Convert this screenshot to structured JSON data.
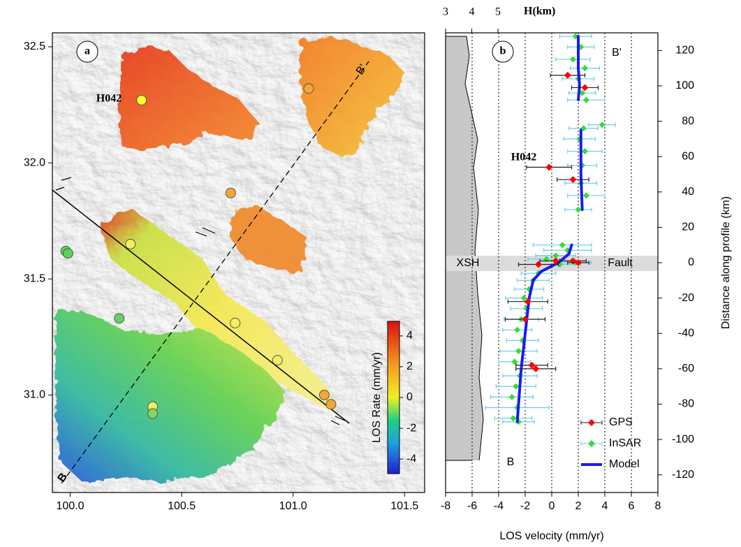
{
  "chart_data": [
    {
      "type": "map",
      "panel_label": "a",
      "xlim": [
        99.92,
        101.59
      ],
      "ylim": [
        30.58,
        32.56
      ],
      "xticks": [
        {
          "value": 100,
          "label": "100.0"
        },
        100.5,
        {
          "value": 101,
          "label": "101.0"
        },
        101.5
      ],
      "yticks": [
        {
          "value": 31,
          "label": "31.0"
        },
        31.5,
        {
          "value": 32,
          "label": "32.0"
        },
        32.5
      ],
      "stations": {
        "x": [
          100.32,
          101.07,
          100.72,
          99.98,
          99.99,
          100.27,
          100.22,
          100.74,
          100.93,
          101.14,
          101.17,
          100.37,
          100.37
        ],
        "y": [
          32.27,
          32.32,
          31.87,
          31.62,
          31.61,
          31.65,
          31.33,
          31.31,
          31.15,
          31.0,
          30.96,
          30.95,
          30.92
        ],
        "colors": [
          "#ffff33",
          "#f4a637",
          "#f4a637",
          "#55d655",
          "#55d655",
          "#f0f060",
          "#66d066",
          "#f0f060",
          "#f0f060",
          "#f4a637",
          "#f4a637",
          "#e8f060",
          "#80d860"
        ]
      },
      "annotations": [
        "H042",
        "B",
        "B'"
      ],
      "colorbar": {
        "label": "LOS Rate (mm/yr)",
        "lim": [
          -4.95,
          4.95
        ],
        "ticks": [
          4,
          2,
          0,
          -2,
          -4
        ]
      }
    },
    {
      "type": "scatter",
      "panel_label": "b",
      "x_label": "LOS velocity (mm/yr)",
      "y_label": "Distance along profile (km)",
      "x2_label": "H(km)",
      "xlim": [
        -8,
        8
      ],
      "xticks": [
        -8,
        -6,
        -4,
        -2,
        0,
        2,
        4,
        6,
        8
      ],
      "ylim": [
        -130,
        130
      ],
      "yticks": [
        -120,
        -100,
        -80,
        -60,
        -40,
        -20,
        0,
        20,
        40,
        60,
        80,
        100,
        120
      ],
      "x2lim": [
        3,
        11.1
      ],
      "x2ticks": [
        3,
        4,
        5
      ],
      "grid": true,
      "legend": "lower right",
      "annotations": [
        "B'",
        "B",
        "H042",
        "XSH",
        "Fault"
      ],
      "series": [
        {
          "name": "GPS",
          "color": "#ff0000",
          "error_color": "#222222",
          "x": [
            1.2,
            2.5,
            -0.2,
            1.6,
            -1.0,
            0.3,
            1.6,
            2.0,
            -1.8,
            -2.0,
            -1.5,
            -1.2
          ],
          "values": [
            106,
            99,
            54,
            47,
            -1,
            1,
            1,
            0,
            -22,
            -32,
            -58,
            -60
          ],
          "errors": [
            1.3,
            1.0,
            1.7,
            1.2,
            1.5,
            1.2,
            1.0,
            0.8,
            1.5,
            1.5,
            1.2,
            1.5
          ]
        },
        {
          "name": "InSAR",
          "color": "#33dd33",
          "error_color": "#66ccee",
          "x": [
            1.8,
            2.2,
            1.6,
            2.5,
            2.0,
            2.3,
            2.6,
            2.4,
            3.8,
            2.1,
            2.5,
            2.3,
            2.2,
            2.6,
            2.0,
            0.8,
            1.2,
            0.3,
            -0.4,
            0.6,
            1.8,
            -1.0,
            -1.4,
            -1.7,
            -2.1,
            -1.9,
            -2.3,
            -2.6,
            -2.2,
            -2.5,
            -2.8,
            -2.4,
            -2.7,
            -3.0,
            -2.6,
            -2.9,
            -2.5
          ],
          "values": [
            128,
            122,
            115,
            110,
            104,
            96,
            92,
            76,
            78,
            70,
            63,
            55,
            45,
            38,
            30,
            10,
            7,
            4,
            2,
            -1,
            0,
            -6,
            -10,
            -15,
            -20,
            -26,
            -32,
            -38,
            -44,
            -50,
            -56,
            -64,
            -70,
            -76,
            -82,
            -88,
            -90
          ],
          "errors": [
            1.2,
            1.0,
            1.3,
            1.1,
            1.2,
            1.0,
            1.4,
            1.1,
            1.0,
            1.2,
            1.3,
            1.1,
            1.2,
            1.4,
            1.0,
            2.2,
            1.8,
            1.5,
            1.4,
            1.6,
            1.2,
            1.3,
            1.2,
            1.1,
            1.4,
            1.2,
            1.3,
            1.1,
            1.2,
            1.4,
            1.2,
            1.3,
            1.5,
            1.6,
            2.4,
            1.4,
            1.2
          ]
        },
        {
          "name": "Model",
          "color": "#1a1aee",
          "line": true,
          "x": [
            2.0,
            2.0,
            2.1,
            2.0,
            null,
            2.2,
            2.2,
            2.3,
            null,
            1.5,
            1.3,
            0.5,
            -0.8,
            -1.4,
            -1.7,
            -2.0,
            -2.3,
            -2.5,
            -2.6
          ],
          "values": [
            128,
            110,
            100,
            92,
            null,
            75,
            50,
            30,
            null,
            10,
            5,
            0,
            -5,
            -10,
            -20,
            -40,
            -60,
            -80,
            -90
          ]
        }
      ]
    }
  ]
}
